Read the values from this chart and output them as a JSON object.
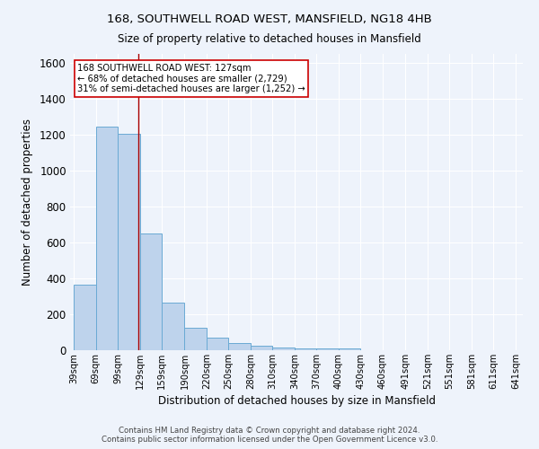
{
  "title1": "168, SOUTHWELL ROAD WEST, MANSFIELD, NG18 4HB",
  "title2": "Size of property relative to detached houses in Mansfield",
  "xlabel": "Distribution of detached houses by size in Mansfield",
  "ylabel": "Number of detached properties",
  "footer1": "Contains HM Land Registry data © Crown copyright and database right 2024.",
  "footer2": "Contains public sector information licensed under the Open Government Licence v3.0.",
  "bar_edges": [
    39,
    69,
    99,
    129,
    159,
    190,
    220,
    250,
    280,
    310,
    340,
    370,
    400,
    430,
    460,
    491,
    521,
    551,
    581,
    611,
    641
  ],
  "bar_heights": [
    365,
    1245,
    1205,
    650,
    265,
    125,
    70,
    38,
    25,
    15,
    12,
    8,
    9,
    0,
    0,
    0,
    0,
    0,
    0,
    0
  ],
  "bar_color": "#bed3ec",
  "bar_edge_color": "#6aaad4",
  "reference_line_x": 127,
  "reference_line_color": "#aa0000",
  "annotation_text": "168 SOUTHWELL ROAD WEST: 127sqm\n← 68% of detached houses are smaller (2,729)\n31% of semi-detached houses are larger (1,252) →",
  "annotation_box_color": "#ffffff",
  "annotation_box_edge_color": "#cc0000",
  "ylim": [
    0,
    1650
  ],
  "tick_labels": [
    "39sqm",
    "69sqm",
    "99sqm",
    "129sqm",
    "159sqm",
    "190sqm",
    "220sqm",
    "250sqm",
    "280sqm",
    "310sqm",
    "340sqm",
    "370sqm",
    "400sqm",
    "430sqm",
    "460sqm",
    "491sqm",
    "521sqm",
    "551sqm",
    "581sqm",
    "611sqm",
    "641sqm"
  ],
  "bg_color": "#eef3fb",
  "grid_color": "#ffffff",
  "yticks": [
    0,
    200,
    400,
    600,
    800,
    1000,
    1200,
    1400,
    1600
  ]
}
